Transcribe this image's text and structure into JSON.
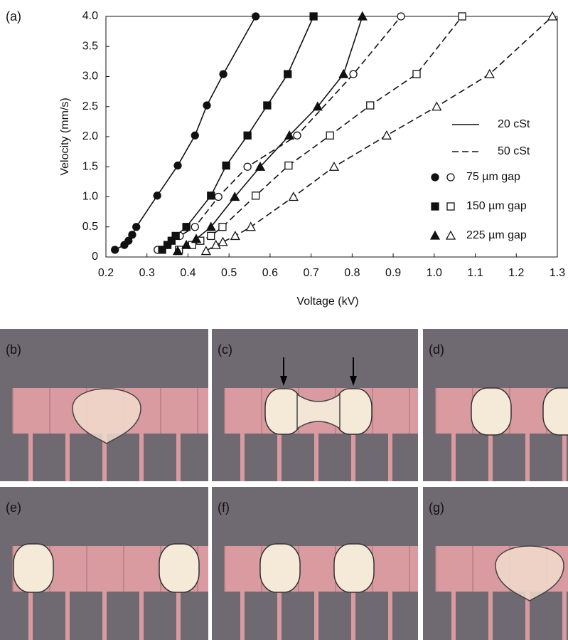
{
  "chart_data": {
    "type": "scatter",
    "panel_label": "(a)",
    "x_label": "Voltage (kV)",
    "y_label": "Velocity (mm/s)",
    "xlim": [
      0.2,
      1.3
    ],
    "xticks": [
      0.2,
      0.3,
      0.4,
      0.5,
      0.6,
      0.7,
      0.8,
      0.9,
      {
        "value": 1,
        "label": "1.0"
      },
      1.1,
      1.2,
      1.3
    ],
    "ylim": [
      0,
      4
    ],
    "yticks": [
      0,
      0.5,
      {
        "value": 1,
        "label": "1.0"
      },
      1.5,
      {
        "value": 2,
        "label": "2.0"
      },
      2.5,
      {
        "value": 3,
        "label": "3.0"
      },
      3.5,
      {
        "value": 4,
        "label": "4.0"
      }
    ],
    "color": "#111111",
    "legend_lines": [
      {
        "name": "20 cSt",
        "dash": "solid"
      },
      {
        "name": "50 cSt",
        "dash": "dashed"
      }
    ],
    "legend_markers": [
      {
        "name": "75 µm gap",
        "marker": "circle"
      },
      {
        "name": "150 µm gap",
        "marker": "square"
      },
      {
        "name": "225 µm gap",
        "marker": "triangle"
      }
    ],
    "series": [
      {
        "marker": "circle",
        "filled": true,
        "dash": "solid",
        "x": [
          0.222,
          0.245,
          0.255,
          0.264,
          0.274,
          0.325,
          0.375,
          0.417,
          0.446,
          0.486,
          0.565
        ],
        "values": [
          0.12,
          0.2,
          0.27,
          0.37,
          0.5,
          1.02,
          1.52,
          2.02,
          2.52,
          3.04,
          4.0
        ]
      },
      {
        "marker": "circle",
        "filled": false,
        "dash": "dashed",
        "x": [
          0.326,
          0.35,
          0.38,
          0.417,
          0.474,
          0.545,
          0.666,
          0.803,
          0.919
        ],
        "values": [
          0.12,
          0.2,
          0.35,
          0.5,
          1.0,
          1.5,
          2.02,
          3.04,
          4.0
        ]
      },
      {
        "marker": "square",
        "filled": true,
        "dash": "solid",
        "x": [
          0.337,
          0.35,
          0.36,
          0.37,
          0.396,
          0.456,
          0.493,
          0.545,
          0.593,
          0.643,
          0.706
        ],
        "values": [
          0.12,
          0.2,
          0.27,
          0.35,
          0.5,
          1.02,
          1.52,
          2.02,
          2.52,
          3.04,
          4.0
        ]
      },
      {
        "marker": "square",
        "filled": false,
        "dash": "dashed",
        "x": [
          0.378,
          0.41,
          0.43,
          0.456,
          0.484,
          0.565,
          0.645,
          0.746,
          0.844,
          0.957,
          1.068
        ],
        "values": [
          0.12,
          0.2,
          0.27,
          0.35,
          0.5,
          1.02,
          1.52,
          2.02,
          2.52,
          3.04,
          4.0
        ]
      },
      {
        "marker": "triangle",
        "filled": true,
        "dash": "solid",
        "x": [
          0.375,
          0.396,
          0.42,
          0.456,
          0.514,
          0.576,
          0.647,
          0.716,
          0.779,
          0.825
        ],
        "values": [
          0.1,
          0.2,
          0.3,
          0.5,
          1.0,
          1.5,
          2.02,
          2.5,
          3.04,
          4.0
        ]
      },
      {
        "marker": "triangle",
        "filled": false,
        "dash": "dashed",
        "x": [
          0.444,
          0.468,
          0.485,
          0.515,
          0.553,
          0.657,
          0.756,
          0.884,
          1.006,
          1.135,
          1.288
        ],
        "values": [
          0.1,
          0.2,
          0.25,
          0.35,
          0.5,
          1.0,
          1.5,
          2.02,
          2.5,
          3.04,
          4.0
        ]
      }
    ]
  },
  "panels": [
    {
      "label": "(b)"
    },
    {
      "label": "(c)"
    },
    {
      "label": "(d)"
    },
    {
      "label": "(e)"
    },
    {
      "label": "(f)"
    },
    {
      "label": "(g)"
    }
  ]
}
